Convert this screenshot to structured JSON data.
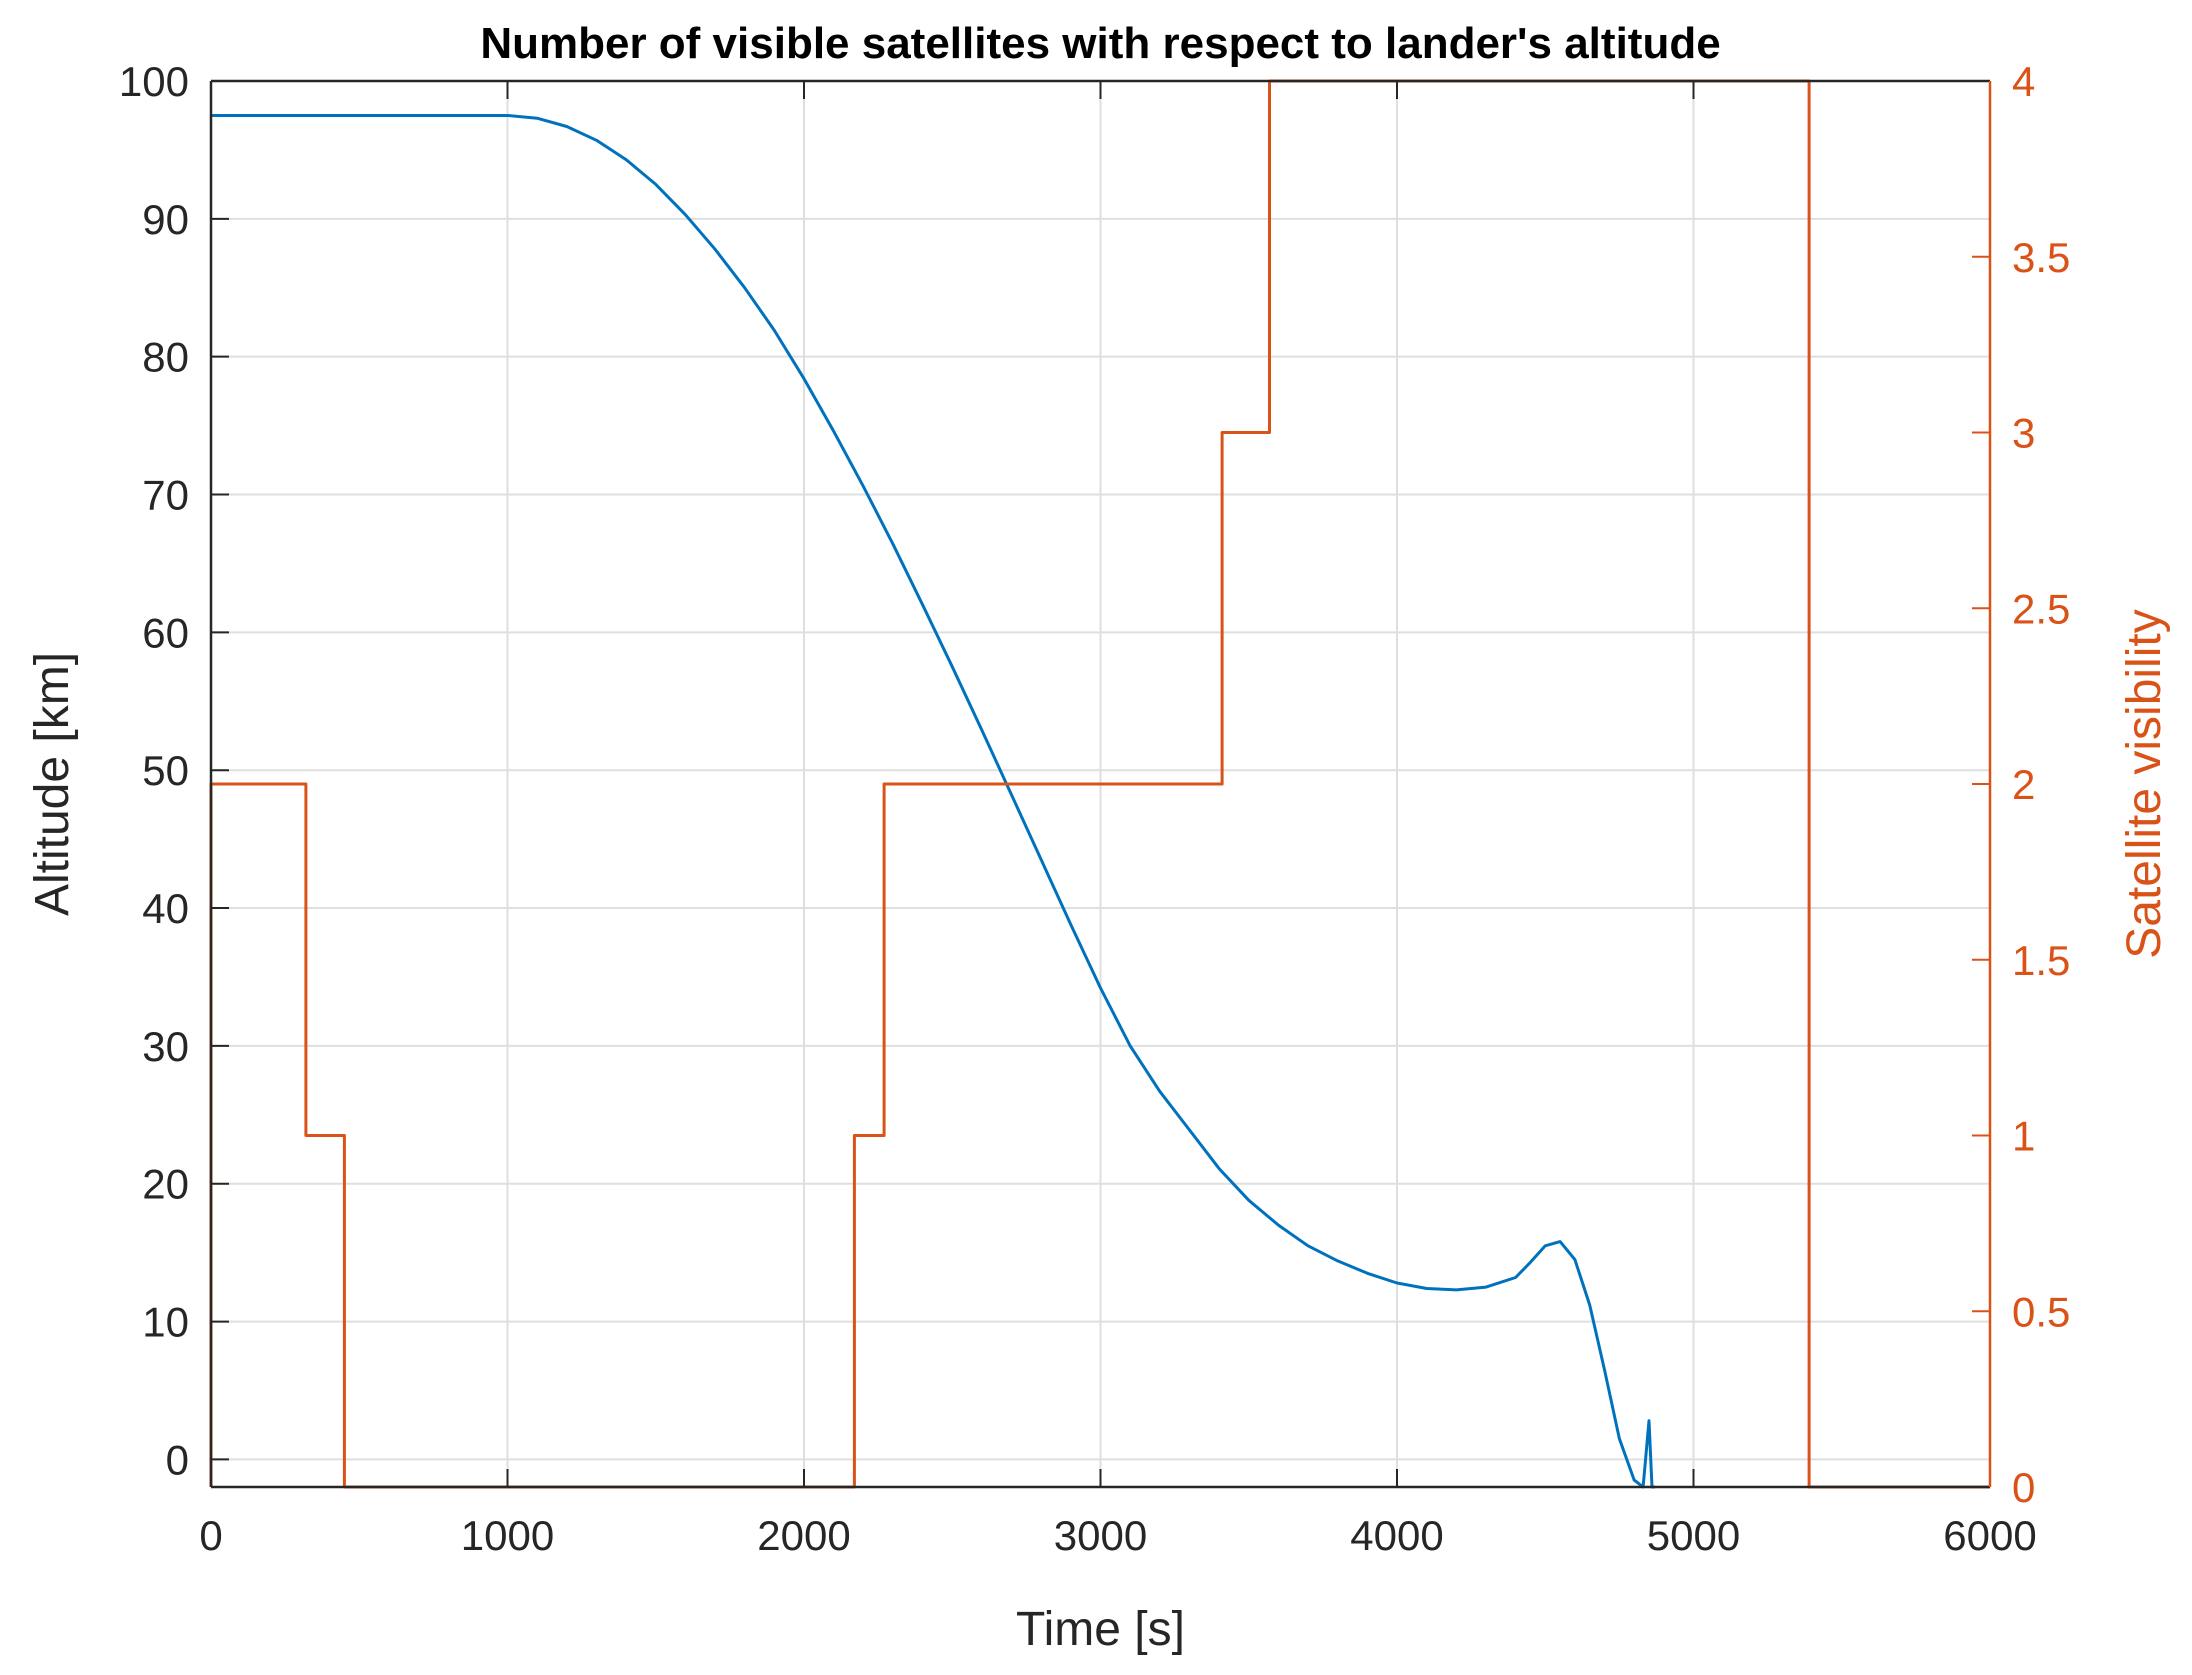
{
  "chart_data": {
    "type": "line",
    "title": "Number of visible satellites with respect to lander's altitude",
    "xlabel": "Time [s]",
    "ylabel_left": "Altitude [km]",
    "ylabel_right": "Satellite visibility",
    "xlim": [
      0,
      6000
    ],
    "ylim_left": [
      -2,
      100
    ],
    "ylim_right": [
      0,
      4
    ],
    "x_ticks": [
      "0",
      "1000",
      "2000",
      "3000",
      "4000",
      "5000",
      "6000"
    ],
    "y_left_ticks": [
      "0",
      "10",
      "20",
      "30",
      "40",
      "50",
      "60",
      "70",
      "80",
      "90",
      "100"
    ],
    "y_right_ticks": [
      "0",
      "0.5",
      "1",
      "1.5",
      "2",
      "2.5",
      "3",
      "3.5",
      "4"
    ],
    "grid": true,
    "colors": {
      "altitude": "#0072bd",
      "visibility": "#d95319",
      "grid": "#dfdfdf",
      "axis": "#262626"
    },
    "series": [
      {
        "axis": "left",
        "x": [
          0,
          1000,
          1100,
          1200,
          1300,
          1400,
          1500,
          1600,
          1700,
          1800,
          1900,
          2000,
          2100,
          2200,
          2300,
          2400,
          2500,
          2600,
          2700,
          2800,
          2900,
          3000,
          3100,
          3200,
          3300,
          3400,
          3500,
          3600,
          3700,
          3800,
          3900,
          4000,
          4100,
          4200,
          4300,
          4400,
          4450,
          4500,
          4550,
          4600,
          4650,
          4700,
          4750,
          4800,
          4830,
          4850,
          4860,
          4860,
          4870
        ],
        "y": [
          97.5,
          97.5,
          97.3,
          96.7,
          95.7,
          94.3,
          92.5,
          90.3,
          87.8,
          85,
          81.9,
          78.4,
          74.6,
          70.6,
          66.4,
          62,
          57.5,
          52.9,
          48.2,
          43.5,
          38.8,
          34.2,
          30,
          26.7,
          23.9,
          21.1,
          18.8,
          17,
          15.5,
          14.4,
          13.5,
          12.8,
          12.4,
          12.3,
          12.5,
          13.2,
          14.3,
          15.5,
          15.8,
          14.5,
          11.2,
          6.5,
          1.5,
          -1.5,
          -2,
          2.8,
          -2,
          -2,
          -2
        ]
      },
      {
        "axis": "right",
        "x": [
          0,
          0,
          320,
          320,
          450,
          450,
          2170,
          2170,
          2270,
          2270,
          3410,
          3410,
          3570,
          3570,
          5390,
          5390,
          6000
        ],
        "y": [
          0,
          2,
          2,
          1,
          1,
          0,
          0,
          1,
          1,
          2,
          2,
          3,
          3,
          4,
          4,
          0,
          0
        ]
      }
    ]
  }
}
